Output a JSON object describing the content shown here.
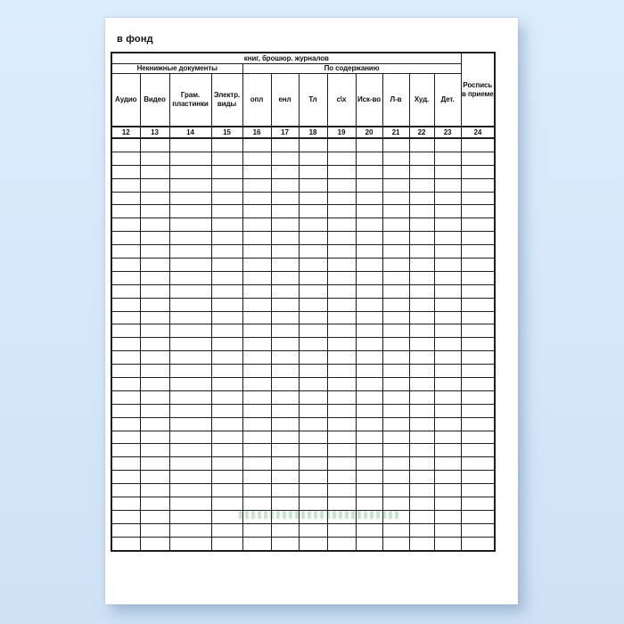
{
  "form": {
    "title": "в фонд",
    "span_header": "книг, брошюр. журналов",
    "group_nonbook": "Некнижные документы",
    "group_content": "По содержанию",
    "signature": {
      "label": "Роспись в приеме",
      "num": "24"
    },
    "columns": [
      {
        "label": "Аудио",
        "num": "12"
      },
      {
        "label": "Видео",
        "num": "13"
      },
      {
        "label": "Грам. пластинки",
        "num": "14"
      },
      {
        "label": "Электр. виды",
        "num": "15"
      },
      {
        "label": "опл",
        "num": "16"
      },
      {
        "label": "енл",
        "num": "17"
      },
      {
        "label": "Тл",
        "num": "18"
      },
      {
        "label": "с\\х",
        "num": "19"
      },
      {
        "label": "Иск-во",
        "num": "20"
      },
      {
        "label": "Л-в",
        "num": "21"
      },
      {
        "label": "Худ.",
        "num": "22"
      },
      {
        "label": "Дет.",
        "num": "23"
      }
    ],
    "body_rows": 31,
    "body_cols": 13
  },
  "colors": {
    "background": "#d7e9fb",
    "paper": "#ffffff",
    "grid_lines": "#1e1e1e",
    "watermark_green": "#267d46"
  }
}
